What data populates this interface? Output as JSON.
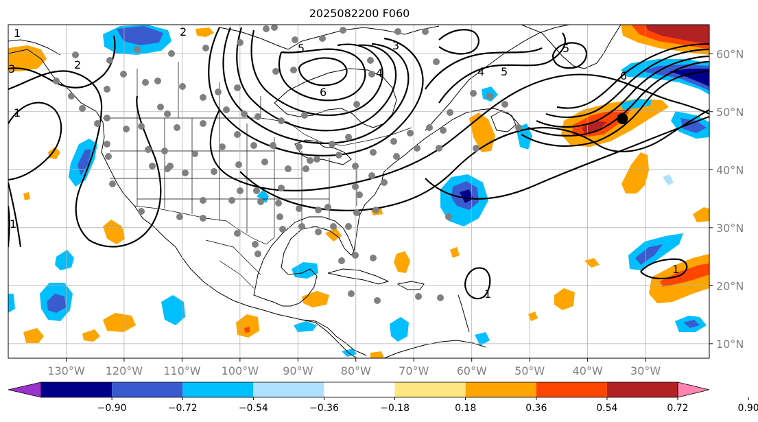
{
  "title": "2025082200 F060",
  "map": {
    "lon_range": [
      -140,
      -19
    ],
    "lat_range": [
      7.5,
      65
    ],
    "lon_ticks": [
      {
        "lon": -130,
        "label": "130°W"
      },
      {
        "lon": -120,
        "label": "120°W"
      },
      {
        "lon": -110,
        "label": "110°W"
      },
      {
        "lon": -100,
        "label": "100°W"
      },
      {
        "lon": -90,
        "label": "90°W"
      },
      {
        "lon": -80,
        "label": "80°W"
      },
      {
        "lon": -70,
        "label": "70°W"
      },
      {
        "lon": -60,
        "label": "60°W"
      },
      {
        "lon": -50,
        "label": "50°W"
      },
      {
        "lon": -40,
        "label": "40°W"
      },
      {
        "lon": -30,
        "label": "30°W"
      }
    ],
    "lat_ticks": [
      {
        "lat": 60,
        "label": "60°N"
      },
      {
        "lat": 50,
        "label": "50°N"
      },
      {
        "lat": 40,
        "label": "40°N"
      },
      {
        "lat": 30,
        "label": "30°N"
      },
      {
        "lat": 20,
        "label": "20°N"
      },
      {
        "lat": 10,
        "label": "10°N"
      }
    ],
    "grid": true,
    "marker": {
      "lon": -34,
      "lat": 48.8,
      "color": "#000000"
    }
  },
  "colorbar": {
    "levels": [
      "−0.90",
      "−0.72",
      "−0.54",
      "−0.36",
      "−0.18",
      "0.18",
      "0.36",
      "0.54",
      "0.72",
      "0.90"
    ],
    "colors": [
      "#9932cc",
      "#00008b",
      "#3a5bd0",
      "#00bfff",
      "#b0e0ff",
      "#ffffff",
      "#ffe680",
      "#ffa500",
      "#ff4500",
      "#b22222",
      "#ff85b0"
    ]
  },
  "contour_labels": [
    "1",
    "2",
    "3",
    "4",
    "5",
    "6"
  ],
  "colors": {
    "contour": "#000000",
    "station": "#808080",
    "grid": "#b0b0b0"
  }
}
